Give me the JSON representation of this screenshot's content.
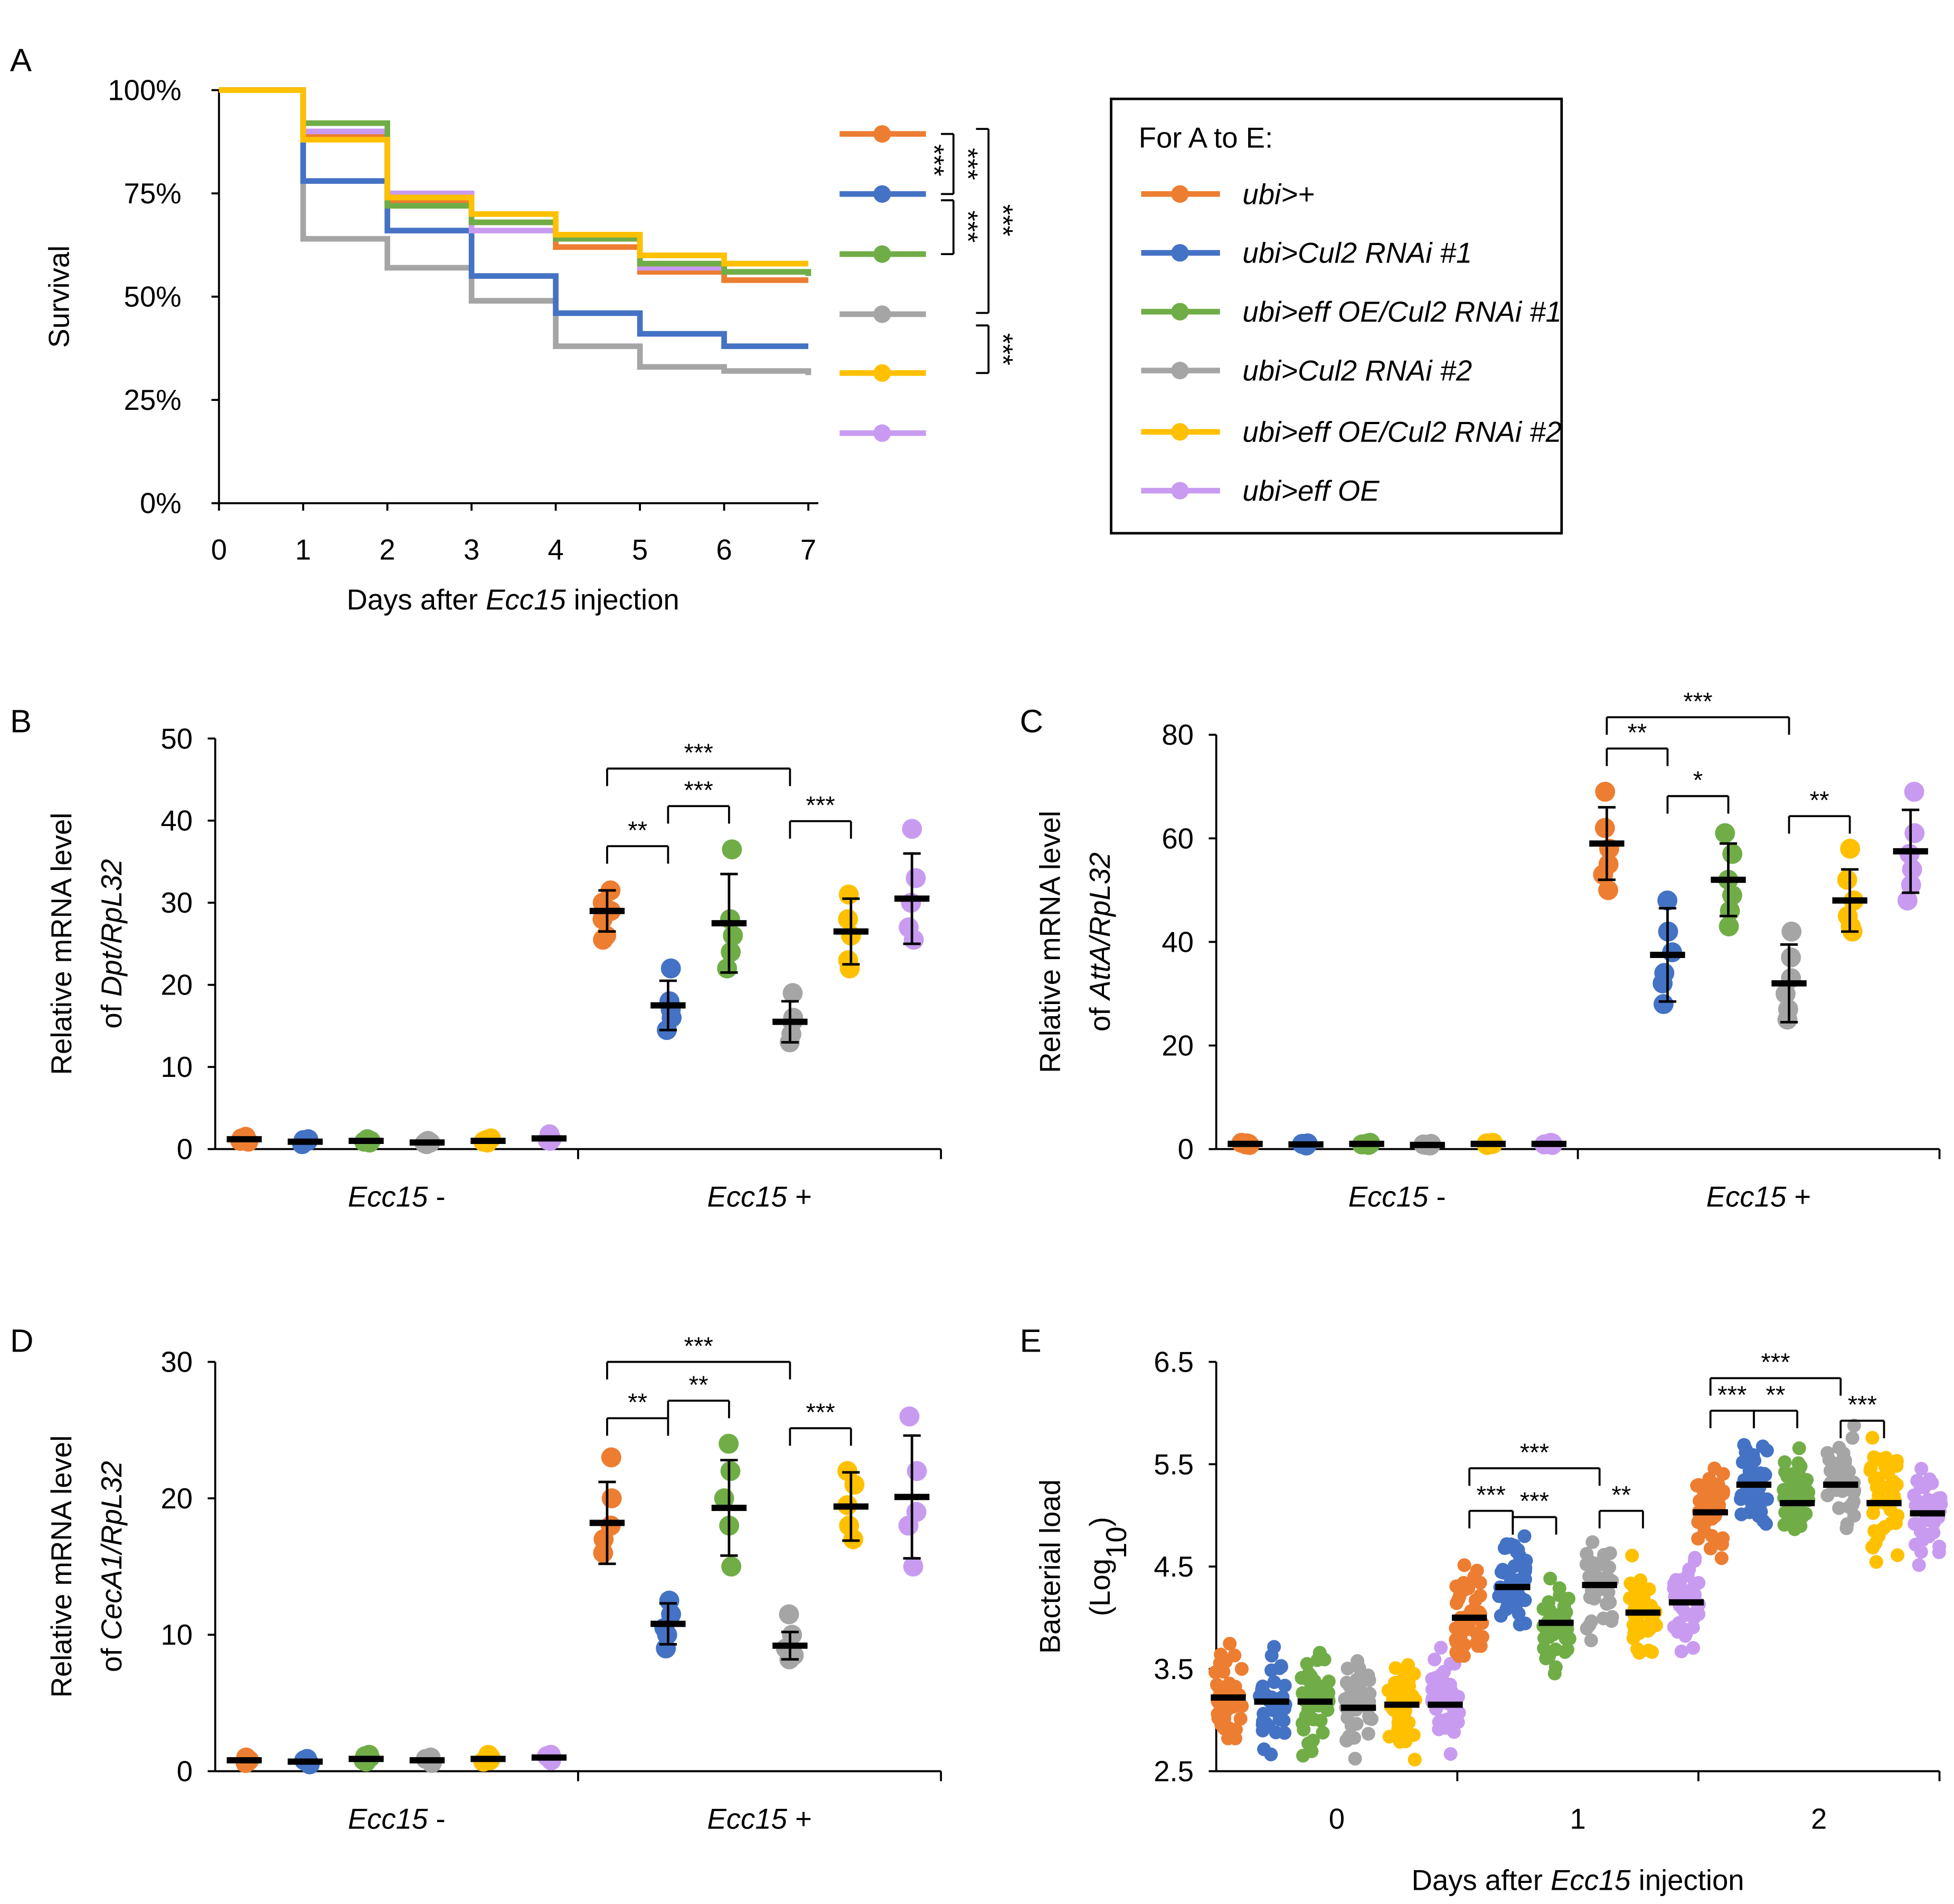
{
  "colors": {
    "orange": "#ED7D31",
    "blue": "#4472C4",
    "green": "#70AD47",
    "gray": "#A5A5A5",
    "yellow": "#FFC000",
    "purple": "#C89BF0",
    "black": "#000000"
  },
  "series": [
    {
      "id": "ubi",
      "prefix": "ubi>+",
      "suffix": "",
      "color": "#ED7D31"
    },
    {
      "id": "cul1",
      "prefix": "ubi>Cul2 RNAi #1",
      "suffix": "",
      "color": "#4472C4"
    },
    {
      "id": "effcul1",
      "prefix": "ubi>eff OE/Cul2 RNAi #1",
      "suffix": "",
      "color": "#70AD47"
    },
    {
      "id": "cul2",
      "prefix": "ubi>Cul2 RNAi #2",
      "suffix": "",
      "color": "#A5A5A5"
    },
    {
      "id": "effcul2",
      "prefix": "ubi>eff OE/Cul2 RNAi #2",
      "suffix": "",
      "color": "#FFC000"
    },
    {
      "id": "eff",
      "prefix": "ubi>eff OE",
      "suffix": "",
      "color": "#C89BF0"
    }
  ],
  "legend_title": "For A to E:",
  "chart_data": [
    {
      "panel": "A",
      "type": "line",
      "step": true,
      "ylabel": "Survival",
      "xlabel_pre": "Days after ",
      "xlabel_it": "Ecc15",
      "xlabel_post": " injection",
      "x": [
        0,
        1,
        2,
        3,
        4,
        5,
        6,
        7
      ],
      "yticks": [
        "0%",
        "25%",
        "50%",
        "75%",
        "100%"
      ],
      "ylim": [
        0,
        100
      ],
      "xlim": [
        0,
        7
      ],
      "series": [
        {
          "name": "ubi>+",
          "values": [
            100,
            89,
            73,
            68,
            62,
            56,
            54,
            54
          ]
        },
        {
          "name": "ubi>Cul2 RNAi #1",
          "values": [
            100,
            78,
            66,
            55,
            46,
            41,
            38,
            38
          ]
        },
        {
          "name": "ubi>eff OE/Cul2 RNAi #1",
          "values": [
            100,
            92,
            72,
            68,
            64,
            58,
            56,
            55
          ]
        },
        {
          "name": "ubi>Cul2 RNAi #2",
          "values": [
            100,
            64,
            57,
            49,
            38,
            33,
            32,
            31
          ]
        },
        {
          "name": "ubi>eff OE/Cul2 RNAi #2",
          "values": [
            100,
            88,
            74,
            70,
            65,
            60,
            58,
            58
          ]
        },
        {
          "name": "ubi>eff OE",
          "values": [
            100,
            90,
            75,
            66,
            64,
            57,
            56,
            56
          ]
        }
      ],
      "annotations": [
        "***",
        "***",
        "***",
        "***",
        "***"
      ]
    },
    {
      "panel": "B",
      "type": "scatter-dot",
      "ylabel1": "Relative mRNA level",
      "ylabel2_pre": "of ",
      "ylabel2_it": "Dpt/RpL32",
      "ylim": [
        0,
        50
      ],
      "yticks": [
        "0",
        "10",
        "20",
        "30",
        "40",
        "50"
      ],
      "groups": [
        "Ecc15 -",
        "Ecc15 +"
      ],
      "means": [
        [
          1.2,
          0.9,
          1.0,
          0.8,
          1.0,
          1.3
        ],
        [
          29,
          17.5,
          27.5,
          15.5,
          26.5,
          30.5
        ]
      ],
      "sd": [
        [
          0.4,
          0.3,
          0.3,
          0.3,
          0.3,
          0.4
        ],
        [
          2.5,
          3,
          6,
          2.5,
          4,
          5.5
        ]
      ],
      "points": [
        [
          [
            1.5,
            0.9,
            1.2,
            1.0,
            1.3
          ],
          [
            1.0,
            0.6,
            0.8,
            1.2,
            1.1
          ],
          [
            1.2,
            0.8,
            1.0,
            1.1,
            0.9
          ],
          [
            0.9,
            0.6,
            1.0,
            0.7,
            0.8
          ],
          [
            1.0,
            1.3,
            0.9,
            1.1,
            0.8
          ],
          [
            1.8,
            1.0,
            1.4,
            1.2,
            1.1
          ]
        ],
        [
          [
            31.5,
            28,
            30,
            26,
            29,
            25.5
          ],
          [
            22,
            18,
            16,
            14.5,
            17
          ],
          [
            36.5,
            28,
            24,
            22,
            26
          ],
          [
            19,
            16,
            14,
            13,
            15.5
          ],
          [
            31,
            28,
            26,
            23,
            22
          ],
          [
            39,
            33,
            30,
            27,
            25.5
          ]
        ]
      ],
      "brackets": [
        [
          "**",
          0,
          1
        ],
        [
          "***",
          1,
          2
        ],
        [
          "***",
          0,
          3
        ],
        [
          "***",
          3,
          4
        ]
      ]
    },
    {
      "panel": "C",
      "type": "scatter-dot",
      "ylabel1": "Relative mRNA level",
      "ylabel2_pre": "of ",
      "ylabel2_it": "AttA/RpL32",
      "ylim": [
        0,
        80
      ],
      "yticks": [
        "0",
        "20",
        "40",
        "60",
        "80"
      ],
      "groups": [
        "Ecc15 -",
        "Ecc15 +"
      ],
      "means": [
        [
          1.0,
          0.9,
          1.0,
          0.8,
          1.0,
          1.0
        ],
        [
          59,
          37.5,
          52,
          32,
          48,
          57.5
        ]
      ],
      "sd": [
        [
          0.3,
          0.3,
          0.3,
          0.3,
          0.3,
          0.3
        ],
        [
          7,
          9,
          7,
          7.5,
          6,
          8
        ]
      ],
      "points": [
        [
          [
            1.2,
            0.8,
            1.0,
            1.1,
            0.9
          ],
          [
            1.0,
            0.7,
            1.1,
            0.8,
            1.0
          ],
          [
            1.1,
            0.9,
            1.0,
            1.2,
            0.8
          ],
          [
            0.9,
            0.7,
            1.0,
            0.8,
            0.9
          ],
          [
            1.0,
            1.2,
            0.9,
            1.1,
            0.8
          ],
          [
            1.1,
            1.0,
            0.9,
            1.2,
            0.8
          ]
        ],
        [
          [
            69,
            62,
            58,
            55,
            53,
            50
          ],
          [
            48,
            42,
            38,
            34,
            32,
            28
          ],
          [
            61,
            57,
            52,
            49,
            46,
            43
          ],
          [
            42,
            37,
            33,
            30,
            27,
            25
          ],
          [
            58,
            52,
            48,
            45,
            43,
            42
          ],
          [
            69,
            61,
            57,
            54,
            51,
            48
          ]
        ]
      ],
      "brackets": [
        [
          "**",
          0,
          1
        ],
        [
          "*",
          1,
          2
        ],
        [
          "***",
          0,
          3
        ],
        [
          "**",
          3,
          4
        ]
      ]
    },
    {
      "panel": "D",
      "type": "scatter-dot",
      "ylabel1": "Relative mRNA level",
      "ylabel2_pre": "of ",
      "ylabel2_it": "CecA1/RpL32",
      "ylim": [
        0,
        30
      ],
      "yticks": [
        "0",
        "10",
        "20",
        "30"
      ],
      "groups": [
        "Ecc15 -",
        "Ecc15 +"
      ],
      "means": [
        [
          0.8,
          0.7,
          0.9,
          0.8,
          0.9,
          1.0
        ],
        [
          18.2,
          10.8,
          19.3,
          9.2,
          19.4,
          20.1
        ]
      ],
      "sd": [
        [
          0.2,
          0.2,
          0.3,
          0.2,
          0.3,
          0.3
        ],
        [
          3,
          1.5,
          3.5,
          1,
          2.5,
          4.5
        ]
      ],
      "points": [
        [
          [
            1.0,
            0.6,
            0.8,
            0.9,
            0.7
          ],
          [
            0.8,
            0.5,
            0.7,
            0.9,
            0.6
          ],
          [
            1.2,
            0.8,
            1.0,
            1.1,
            0.7
          ],
          [
            0.9,
            0.6,
            1.0,
            0.8,
            0.7
          ],
          [
            1.0,
            1.2,
            0.8,
            0.9,
            0.7
          ],
          [
            1.2,
            1.0,
            0.9,
            1.1,
            0.8
          ]
        ],
        [
          [
            23,
            20,
            18,
            17,
            16
          ],
          [
            12.5,
            11.5,
            10.5,
            10,
            9
          ],
          [
            24,
            22,
            20,
            18,
            15
          ],
          [
            11.5,
            10,
            9,
            8.5,
            8.2
          ],
          [
            22,
            21,
            19.5,
            18,
            17
          ],
          [
            26,
            22,
            19,
            18,
            15
          ]
        ]
      ],
      "brackets": [
        [
          "**",
          0,
          1
        ],
        [
          "**",
          1,
          2
        ],
        [
          "***",
          0,
          3
        ],
        [
          "***",
          3,
          4
        ]
      ]
    },
    {
      "panel": "E",
      "type": "scatter-dot",
      "ylabel1": "Bacterial load",
      "ylabel2": "(Log10)",
      "xlabel_pre": "Days after ",
      "xlabel_it": "Ecc15",
      "xlabel_post": " injection",
      "ylim": [
        2.5,
        6.5
      ],
      "yticks": [
        "2.5",
        "3.5",
        "4.5",
        "5.5",
        "6.5"
      ],
      "groups": [
        "0",
        "1",
        "2"
      ],
      "means": [
        [
          3.22,
          3.18,
          3.18,
          3.12,
          3.15,
          3.15
        ],
        [
          4.0,
          4.3,
          3.95,
          4.32,
          4.05,
          4.15
        ],
        [
          5.03,
          5.3,
          5.12,
          5.3,
          5.12,
          5.02
        ]
      ],
      "brackets": [
        [
          [
            "***",
            0,
            1
          ],
          [
            "***",
            1,
            2
          ],
          [
            "***",
            0,
            3
          ],
          [
            "**",
            3,
            4
          ]
        ],
        [
          [
            "***",
            0,
            1
          ],
          [
            "**",
            1,
            2
          ],
          [
            "***",
            0,
            3
          ],
          [
            "***",
            3,
            4
          ]
        ]
      ]
    }
  ]
}
